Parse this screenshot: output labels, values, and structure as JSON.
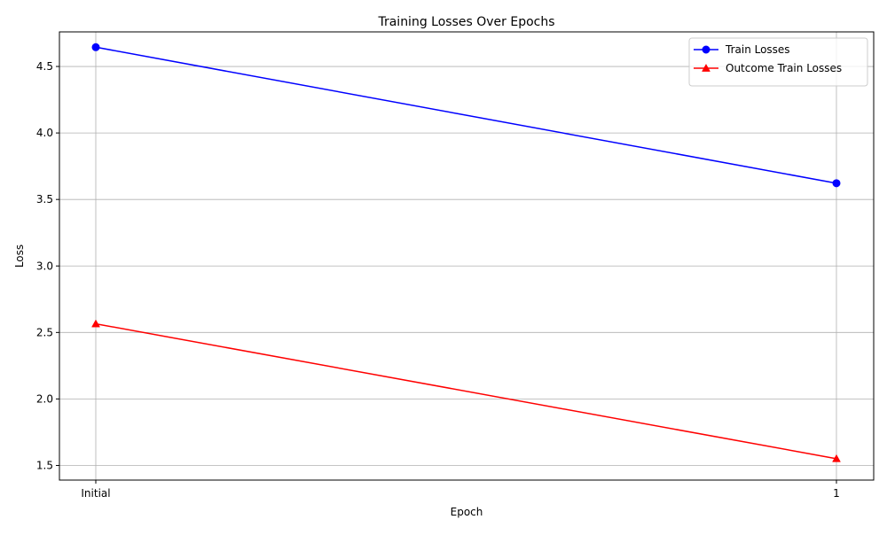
{
  "chart_data": {
    "type": "line",
    "title": "Training Losses Over Epochs",
    "xlabel": "Epoch",
    "ylabel": "Loss",
    "categories": [
      "Initial",
      "1"
    ],
    "ylim": [
      1.39,
      4.76
    ],
    "yticks": [
      1.5,
      2.0,
      2.5,
      3.0,
      3.5,
      4.0,
      4.5
    ],
    "ytick_labels": [
      "1.5",
      "2.0",
      "2.5",
      "3.0",
      "3.5",
      "4.0",
      "4.5"
    ],
    "grid": true,
    "legend_position": "top-right",
    "series": [
      {
        "name": "Train Losses",
        "values": [
          4.645,
          3.622
        ],
        "color": "#0000ff",
        "marker": "circle"
      },
      {
        "name": "Outcome Train Losses",
        "values": [
          2.565,
          1.551
        ],
        "color": "#ff0000",
        "marker": "triangle"
      }
    ]
  }
}
